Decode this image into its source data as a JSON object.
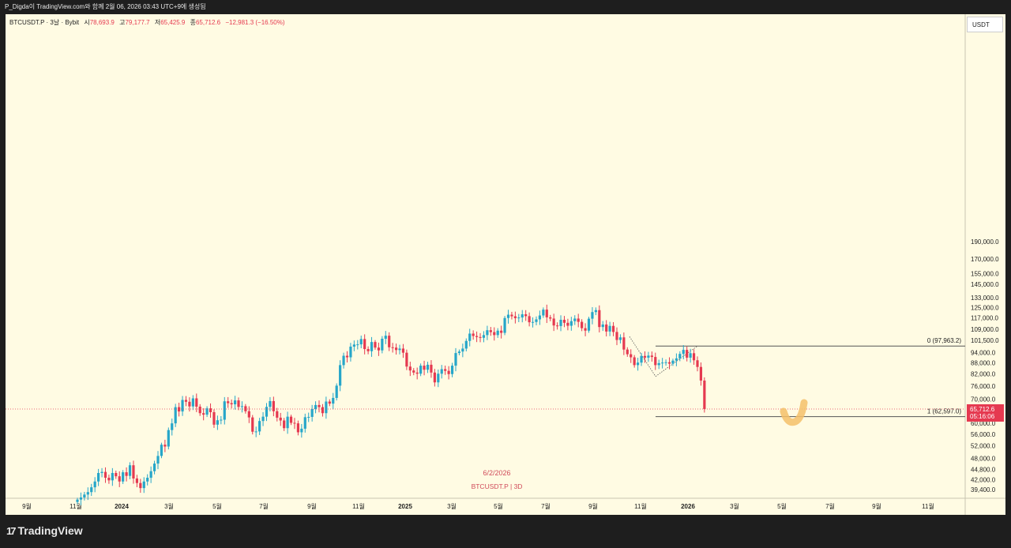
{
  "header": {
    "text": "P_Digda이 TradingView.com와 함께 2월 06, 2026 03:43 UTC+9에 생성됨"
  },
  "legend": {
    "symbol": "BTCUSDT.P · 3날 · Bybit",
    "open_label": "시",
    "open": "78,693.9",
    "high_label": "고",
    "high": "79,177.7",
    "low_label": "저",
    "low": "65,425.9",
    "close_label": "종",
    "close": "65,712.6",
    "change": "−12,981.3 (−16.50%)"
  },
  "currency": "USDT",
  "watermark": {
    "date": "6/2/2026",
    "symbol": "BTCUSDT.P  |  3D"
  },
  "footer": {
    "brand": "TradingView"
  },
  "colors": {
    "up": "#26a6c9",
    "down": "#e53950",
    "background": "#fffbe3",
    "frame": "#1e1e1e",
    "highlight": "#f5c06a"
  },
  "chart_data": {
    "type": "candlestick",
    "scale": "log",
    "ylim": [
      36000,
      215000
    ],
    "y_ticks": [
      "37,000.0",
      "39,400.0",
      "42,000.0",
      "44,800.0",
      "48,000.0",
      "52,000.0",
      "56,000.0",
      "60,000.0",
      "64,000.0",
      "70,000.0",
      "76,000.0",
      "82,000.0",
      "88,000.0",
      "94,000.0",
      "101,500.0",
      "109,000.0",
      "117,000.0",
      "125,000.0",
      "133,000.0",
      "145,000.0",
      "155,000.0",
      "170,000.0",
      "190,000.0"
    ],
    "x_ticks": [
      "9월",
      "11월",
      "2024",
      "3월",
      "5월",
      "7월",
      "9월",
      "11월",
      "2025",
      "3월",
      "5월",
      "7월",
      "9월",
      "11월",
      "2026",
      "3월",
      "5월",
      "7월",
      "9월",
      "11월"
    ],
    "last_price": {
      "value": 65712.6,
      "label": "65,712.6",
      "countdown": "05:16:06"
    },
    "fib_levels": [
      {
        "label": "0 (97,963.2)",
        "value": 97963.2
      },
      {
        "label": "1 (62,597.0)",
        "value": 62597.0
      }
    ],
    "closes": [
      37000,
      37500,
      38200,
      38800,
      40000,
      41500,
      43800,
      44100,
      42500,
      41800,
      43800,
      42900,
      41500,
      44000,
      43000,
      46000,
      42300,
      41100,
      39800,
      41500,
      42500,
      44300,
      46500,
      48800,
      52400,
      51800,
      57500,
      60000,
      66500,
      64700,
      69600,
      68800,
      66800,
      70300,
      66700,
      64000,
      63400,
      66000,
      64400,
      59500,
      61200,
      61400,
      69000,
      68200,
      67700,
      69400,
      66600,
      66900,
      64800,
      62300,
      56900,
      57000,
      60900,
      62600,
      66600,
      69100,
      64800,
      62200,
      61100,
      58200,
      62600,
      60200,
      60000,
      56700,
      58000,
      62400,
      62500,
      65700,
      67400,
      66500,
      64000,
      68900,
      68000,
      70500,
      76200,
      86800,
      92100,
      91200,
      97600,
      98900,
      99000,
      102400,
      96100,
      94800,
      100500,
      97000,
      95300,
      102600,
      104600,
      97200,
      97000,
      95500,
      96400,
      93900,
      86000,
      83900,
      82800,
      82200,
      86500,
      84300,
      87000,
      82800,
      77800,
      82200,
      84600,
      83700,
      82000,
      86500,
      93700,
      94600,
      96400,
      101200,
      106000,
      104400,
      103700,
      103200,
      105000,
      108300,
      107000,
      105000,
      108000,
      106500,
      117000,
      119500,
      118300,
      116900,
      117400,
      119800,
      118400,
      113900,
      114100,
      116000,
      118900,
      123400,
      117500,
      116600,
      111600,
      111200,
      115700,
      113500,
      111400,
      114700,
      116600,
      114200,
      109700,
      108000,
      116500,
      121500,
      123000,
      110500,
      112300,
      107400,
      111300,
      107100,
      101800,
      103500,
      95800,
      93000,
      91200,
      86800,
      88200,
      92000,
      91000,
      92200,
      91400,
      86800,
      87900,
      88200,
      88400,
      87600,
      89300,
      90600,
      93200,
      95600,
      91000,
      93600,
      89500,
      85800,
      78700,
      65712.6
    ]
  }
}
